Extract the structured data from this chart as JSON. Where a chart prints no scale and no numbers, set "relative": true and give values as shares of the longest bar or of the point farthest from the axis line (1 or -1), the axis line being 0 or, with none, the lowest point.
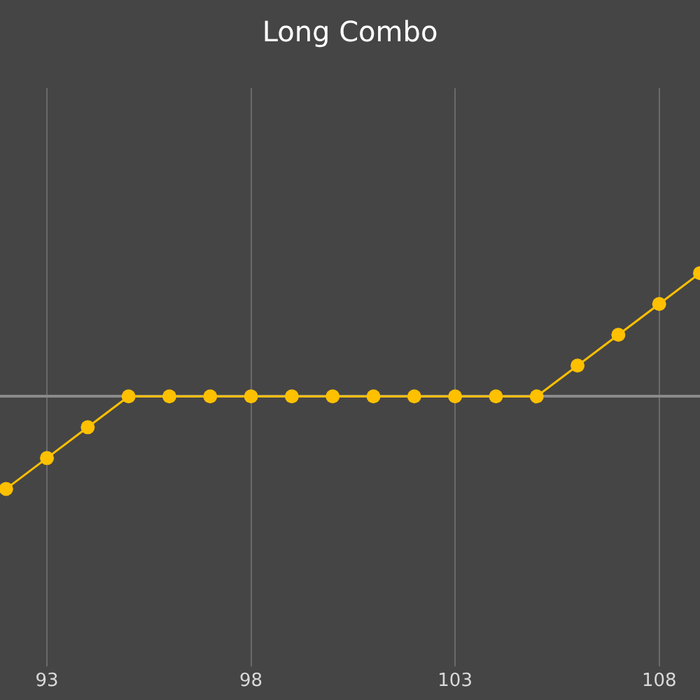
{
  "chart_data": {
    "type": "line",
    "title": "Long Combo",
    "relative": true,
    "x": [
      92,
      93,
      94,
      95,
      96,
      97,
      98,
      99,
      100,
      101,
      102,
      103,
      104,
      105,
      106,
      107,
      108,
      109
    ],
    "series": [
      {
        "color": "#ffc000",
        "values": [
          -0.75,
          -0.5,
          -0.25,
          0,
          0,
          0,
          0,
          0,
          0,
          0,
          0,
          0,
          0,
          0,
          0.25,
          0.5,
          0.75,
          1
        ]
      }
    ],
    "xlim": [
      91.85,
      109
    ],
    "xticks": [
      93,
      98,
      103,
      108
    ],
    "tick_labels": "x",
    "grid": "x",
    "marker": "circle",
    "line_style": "solid"
  }
}
